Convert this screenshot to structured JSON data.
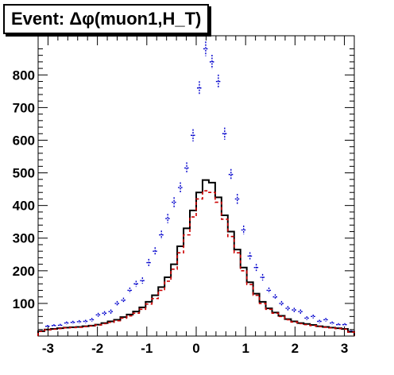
{
  "chart_data": {
    "type": "histogram",
    "title": "Event: Δφ(muon1,H_T)",
    "xlim": [
      -3.2,
      3.2
    ],
    "ylim": [
      0,
      920
    ],
    "x_ticks": [
      "-3",
      "-2",
      "-1",
      "0",
      "1",
      "2",
      "3"
    ],
    "y_ticks": [
      "100",
      "200",
      "300",
      "400",
      "500",
      "600",
      "700",
      "800"
    ],
    "x_tick_values": [
      -3,
      -2,
      -1,
      0,
      1,
      2,
      3
    ],
    "y_tick_values": [
      100,
      200,
      300,
      400,
      500,
      600,
      700,
      800
    ],
    "bin_edges_start": -3.2,
    "bin_width": 0.128,
    "series": [
      {
        "style": "step",
        "color": "#000000",
        "values": [
          15,
          20,
          22,
          24,
          26,
          27,
          28,
          30,
          32,
          35,
          40,
          45,
          50,
          58,
          66,
          75,
          88,
          105,
          125,
          150,
          180,
          220,
          275,
          330,
          385,
          440,
          478,
          470,
          425,
          370,
          320,
          265,
          210,
          165,
          130,
          105,
          85,
          72,
          62,
          52,
          45,
          40,
          37,
          34,
          30,
          28,
          26,
          24,
          22,
          13
        ]
      },
      {
        "style": "step",
        "color": "#cc0000",
        "values": [
          14,
          19,
          21,
          23,
          25,
          26,
          27,
          29,
          31,
          34,
          38,
          42,
          47,
          55,
          62,
          70,
          82,
          98,
          115,
          140,
          168,
          205,
          255,
          310,
          365,
          420,
          445,
          440,
          410,
          358,
          305,
          255,
          200,
          158,
          125,
          100,
          82,
          70,
          60,
          50,
          43,
          38,
          35,
          32,
          29,
          27,
          25,
          23,
          21,
          12
        ]
      },
      {
        "style": "points",
        "color": "#0000cc",
        "values": [
          15,
          30,
          32,
          33,
          40,
          42,
          44,
          45,
          50,
          65,
          70,
          75,
          100,
          110,
          140,
          160,
          170,
          225,
          260,
          310,
          360,
          410,
          455,
          515,
          615,
          760,
          880,
          840,
          780,
          620,
          495,
          420,
          325,
          245,
          210,
          180,
          140,
          120,
          100,
          85,
          80,
          75,
          55,
          60,
          45,
          50,
          40,
          35,
          35,
          15
        ]
      }
    ]
  }
}
